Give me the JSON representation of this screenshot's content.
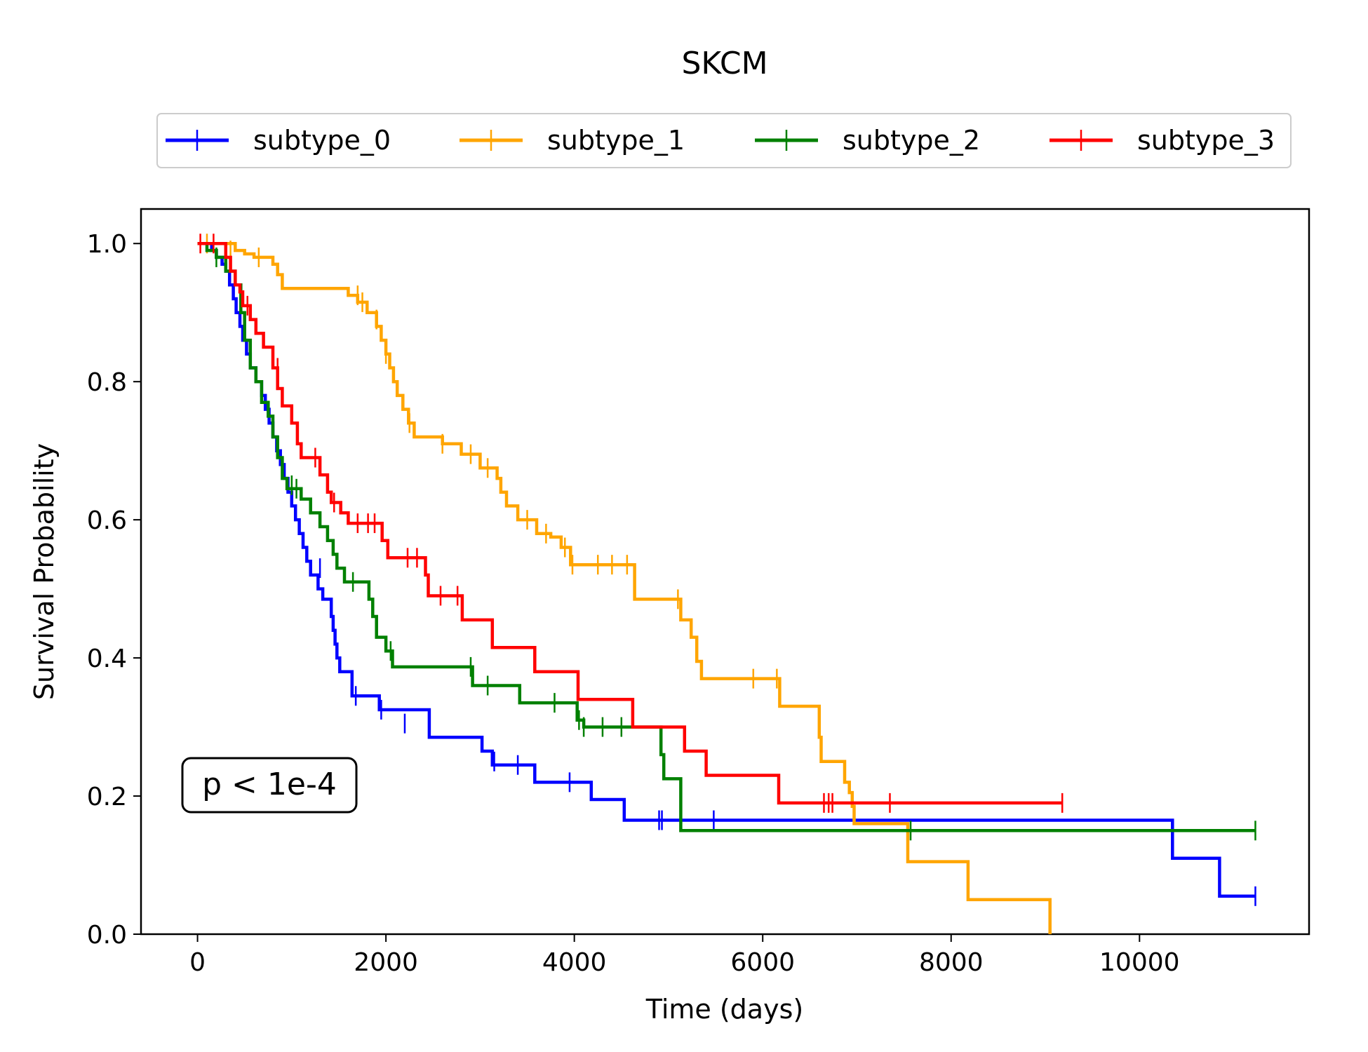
{
  "chart_data": {
    "type": "line",
    "title": "SKCM",
    "xlabel": "Time (days)",
    "ylabel": "Survival Probability",
    "xlim": [
      -600,
      11800
    ],
    "ylim": [
      0,
      1.05
    ],
    "xticks": [
      0,
      2000,
      4000,
      6000,
      8000,
      10000
    ],
    "xtick_labels": [
      "0",
      "2000",
      "4000",
      "6000",
      "8000",
      "10000"
    ],
    "yticks": [
      0.0,
      0.2,
      0.4,
      0.6,
      0.8,
      1.0
    ],
    "ytick_labels": [
      "0.0",
      "0.2",
      "0.4",
      "0.6",
      "0.8",
      "1.0"
    ],
    "legend_position": "top-center, outside plot",
    "annotation": "p < 1e-4",
    "grid": false,
    "series": [
      {
        "name": "subtype_0",
        "color": "#0000ff",
        "steps": [
          [
            0,
            1.0
          ],
          [
            150,
            0.99
          ],
          [
            200,
            0.98
          ],
          [
            260,
            0.97
          ],
          [
            300,
            0.96
          ],
          [
            340,
            0.94
          ],
          [
            380,
            0.92
          ],
          [
            410,
            0.9
          ],
          [
            450,
            0.88
          ],
          [
            480,
            0.86
          ],
          [
            520,
            0.84
          ],
          [
            560,
            0.82
          ],
          [
            620,
            0.8
          ],
          [
            680,
            0.78
          ],
          [
            720,
            0.76
          ],
          [
            760,
            0.74
          ],
          [
            800,
            0.72
          ],
          [
            840,
            0.7
          ],
          [
            880,
            0.68
          ],
          [
            920,
            0.66
          ],
          [
            960,
            0.64
          ],
          [
            1000,
            0.62
          ],
          [
            1040,
            0.6
          ],
          [
            1080,
            0.58
          ],
          [
            1120,
            0.56
          ],
          [
            1160,
            0.54
          ],
          [
            1200,
            0.52
          ],
          [
            1280,
            0.5
          ],
          [
            1330,
            0.485
          ],
          [
            1420,
            0.46
          ],
          [
            1440,
            0.44
          ],
          [
            1460,
            0.42
          ],
          [
            1480,
            0.4
          ],
          [
            1510,
            0.38
          ],
          [
            1640,
            0.345
          ],
          [
            1930,
            0.325
          ],
          [
            2460,
            0.285
          ],
          [
            3020,
            0.265
          ],
          [
            3130,
            0.245
          ],
          [
            3580,
            0.22
          ],
          [
            4180,
            0.195
          ],
          [
            4530,
            0.165
          ],
          [
            10350,
            0.11
          ],
          [
            10850,
            0.055
          ],
          [
            11230,
            0.055
          ]
        ],
        "censors": [
          [
            1300,
            0.53
          ],
          [
            1680,
            0.345
          ],
          [
            1950,
            0.325
          ],
          [
            2200,
            0.305
          ],
          [
            3150,
            0.25
          ],
          [
            3400,
            0.245
          ],
          [
            3950,
            0.22
          ],
          [
            4900,
            0.165
          ],
          [
            4930,
            0.165
          ],
          [
            5480,
            0.165
          ],
          [
            11230,
            0.055
          ]
        ]
      },
      {
        "name": "subtype_1",
        "color": "#ffa500",
        "steps": [
          [
            0,
            1.0
          ],
          [
            400,
            0.99
          ],
          [
            500,
            0.985
          ],
          [
            600,
            0.98
          ],
          [
            800,
            0.97
          ],
          [
            850,
            0.955
          ],
          [
            900,
            0.935
          ],
          [
            1600,
            0.925
          ],
          [
            1700,
            0.915
          ],
          [
            1800,
            0.9
          ],
          [
            1900,
            0.88
          ],
          [
            1950,
            0.86
          ],
          [
            2000,
            0.84
          ],
          [
            2040,
            0.82
          ],
          [
            2080,
            0.8
          ],
          [
            2120,
            0.78
          ],
          [
            2180,
            0.76
          ],
          [
            2240,
            0.74
          ],
          [
            2300,
            0.72
          ],
          [
            2600,
            0.71
          ],
          [
            2800,
            0.695
          ],
          [
            3000,
            0.675
          ],
          [
            3180,
            0.66
          ],
          [
            3220,
            0.64
          ],
          [
            3280,
            0.62
          ],
          [
            3400,
            0.6
          ],
          [
            3600,
            0.58
          ],
          [
            3750,
            0.575
          ],
          [
            3860,
            0.56
          ],
          [
            3960,
            0.535
          ],
          [
            4640,
            0.485
          ],
          [
            5130,
            0.455
          ],
          [
            5240,
            0.43
          ],
          [
            5300,
            0.395
          ],
          [
            5350,
            0.37
          ],
          [
            6180,
            0.33
          ],
          [
            6600,
            0.285
          ],
          [
            6620,
            0.25
          ],
          [
            6870,
            0.22
          ],
          [
            6920,
            0.205
          ],
          [
            6950,
            0.185
          ],
          [
            6970,
            0.16
          ],
          [
            7540,
            0.105
          ],
          [
            8180,
            0.05
          ],
          [
            9050,
            0.0
          ]
        ],
        "censors": [
          [
            100,
            1.0
          ],
          [
            350,
            0.99
          ],
          [
            650,
            0.98
          ],
          [
            1700,
            0.925
          ],
          [
            1750,
            0.915
          ],
          [
            1900,
            0.89
          ],
          [
            2000,
            0.84
          ],
          [
            2250,
            0.74
          ],
          [
            2600,
            0.71
          ],
          [
            2900,
            0.695
          ],
          [
            3080,
            0.675
          ],
          [
            3500,
            0.6
          ],
          [
            3700,
            0.58
          ],
          [
            3900,
            0.56
          ],
          [
            3980,
            0.535
          ],
          [
            4250,
            0.535
          ],
          [
            4400,
            0.535
          ],
          [
            4560,
            0.535
          ],
          [
            5100,
            0.485
          ],
          [
            5900,
            0.37
          ],
          [
            6150,
            0.37
          ]
        ]
      },
      {
        "name": "subtype_2",
        "color": "#008000",
        "steps": [
          [
            0,
            1.0
          ],
          [
            100,
            0.99
          ],
          [
            200,
            0.98
          ],
          [
            300,
            0.96
          ],
          [
            400,
            0.94
          ],
          [
            460,
            0.9
          ],
          [
            500,
            0.86
          ],
          [
            560,
            0.82
          ],
          [
            620,
            0.8
          ],
          [
            680,
            0.77
          ],
          [
            750,
            0.75
          ],
          [
            800,
            0.72
          ],
          [
            850,
            0.69
          ],
          [
            900,
            0.66
          ],
          [
            950,
            0.645
          ],
          [
            1100,
            0.63
          ],
          [
            1200,
            0.61
          ],
          [
            1300,
            0.59
          ],
          [
            1380,
            0.57
          ],
          [
            1440,
            0.55
          ],
          [
            1480,
            0.53
          ],
          [
            1560,
            0.51
          ],
          [
            1820,
            0.485
          ],
          [
            1860,
            0.46
          ],
          [
            1900,
            0.43
          ],
          [
            2000,
            0.41
          ],
          [
            2070,
            0.387
          ],
          [
            2920,
            0.36
          ],
          [
            3420,
            0.335
          ],
          [
            4030,
            0.31
          ],
          [
            4100,
            0.3
          ],
          [
            4920,
            0.26
          ],
          [
            4950,
            0.225
          ],
          [
            5130,
            0.15
          ],
          [
            11230,
            0.15
          ]
        ],
        "censors": [
          [
            200,
            0.98
          ],
          [
            1000,
            0.65
          ],
          [
            1050,
            0.645
          ],
          [
            1650,
            0.51
          ],
          [
            2050,
            0.41
          ],
          [
            2900,
            0.387
          ],
          [
            3080,
            0.36
          ],
          [
            3790,
            0.335
          ],
          [
            4050,
            0.31
          ],
          [
            4100,
            0.3
          ],
          [
            4300,
            0.3
          ],
          [
            4500,
            0.3
          ],
          [
            7570,
            0.15
          ],
          [
            11230,
            0.15
          ]
        ]
      },
      {
        "name": "subtype_3",
        "color": "#ff0000",
        "steps": [
          [
            0,
            1.0
          ],
          [
            300,
            0.98
          ],
          [
            350,
            0.96
          ],
          [
            400,
            0.94
          ],
          [
            450,
            0.93
          ],
          [
            480,
            0.91
          ],
          [
            560,
            0.89
          ],
          [
            620,
            0.87
          ],
          [
            700,
            0.85
          ],
          [
            800,
            0.82
          ],
          [
            850,
            0.79
          ],
          [
            900,
            0.765
          ],
          [
            1000,
            0.74
          ],
          [
            1060,
            0.71
          ],
          [
            1100,
            0.69
          ],
          [
            1300,
            0.665
          ],
          [
            1380,
            0.64
          ],
          [
            1420,
            0.625
          ],
          [
            1520,
            0.61
          ],
          [
            1600,
            0.595
          ],
          [
            1960,
            0.57
          ],
          [
            2020,
            0.545
          ],
          [
            2420,
            0.52
          ],
          [
            2450,
            0.49
          ],
          [
            2810,
            0.455
          ],
          [
            3130,
            0.415
          ],
          [
            3580,
            0.38
          ],
          [
            4040,
            0.34
          ],
          [
            4620,
            0.3
          ],
          [
            5170,
            0.265
          ],
          [
            5400,
            0.23
          ],
          [
            6170,
            0.19
          ],
          [
            9180,
            0.19
          ]
        ],
        "censors": [
          [
            30,
            1.0
          ],
          [
            170,
            1.0
          ],
          [
            530,
            0.91
          ],
          [
            850,
            0.82
          ],
          [
            1250,
            0.69
          ],
          [
            1450,
            0.625
          ],
          [
            1700,
            0.595
          ],
          [
            1810,
            0.595
          ],
          [
            1880,
            0.595
          ],
          [
            2230,
            0.545
          ],
          [
            2330,
            0.545
          ],
          [
            2580,
            0.49
          ],
          [
            2760,
            0.49
          ],
          [
            6650,
            0.19
          ],
          [
            6700,
            0.19
          ],
          [
            6740,
            0.19
          ],
          [
            7350,
            0.19
          ],
          [
            9180,
            0.19
          ]
        ]
      }
    ]
  }
}
